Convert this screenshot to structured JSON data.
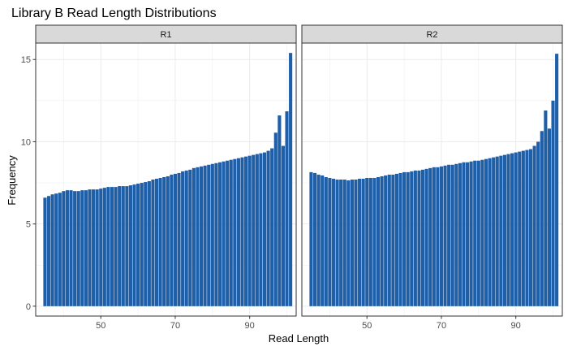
{
  "chart_data": {
    "type": "bar",
    "title": "Library B Read Length Distributions",
    "xlabel": "Read Length",
    "ylabel": "Frequency",
    "xticks": [
      50,
      70,
      90
    ],
    "yticks": [
      0,
      5,
      10,
      15
    ],
    "xlim": [
      32.5,
      102.5
    ],
    "ylim": [
      -0.6,
      16.0
    ],
    "bar_color": "#1F5FA8",
    "strip_fill": "#D9D9D9",
    "grid_color": "#EBEBEB",
    "panel_border": "#333333",
    "grid": true,
    "x": [
      35,
      36,
      37,
      38,
      39,
      40,
      41,
      42,
      43,
      44,
      45,
      46,
      47,
      48,
      49,
      50,
      51,
      52,
      53,
      54,
      55,
      56,
      57,
      58,
      59,
      60,
      61,
      62,
      63,
      64,
      65,
      66,
      67,
      68,
      69,
      70,
      71,
      72,
      73,
      74,
      75,
      76,
      77,
      78,
      79,
      80,
      81,
      82,
      83,
      84,
      85,
      86,
      87,
      88,
      89,
      90,
      91,
      92,
      93,
      94,
      95,
      96,
      97,
      98,
      99,
      100,
      101
    ],
    "panels": [
      {
        "label": "R1",
        "values": [
          6.6,
          6.7,
          6.8,
          6.85,
          6.9,
          7.0,
          7.05,
          7.05,
          7.0,
          7.0,
          7.05,
          7.05,
          7.1,
          7.1,
          7.1,
          7.15,
          7.2,
          7.25,
          7.25,
          7.25,
          7.3,
          7.3,
          7.3,
          7.35,
          7.4,
          7.45,
          7.5,
          7.55,
          7.6,
          7.7,
          7.75,
          7.8,
          7.85,
          7.9,
          8.0,
          8.05,
          8.1,
          8.2,
          8.25,
          8.3,
          8.4,
          8.45,
          8.5,
          8.55,
          8.6,
          8.65,
          8.7,
          8.75,
          8.8,
          8.85,
          8.9,
          8.95,
          9.0,
          9.05,
          9.1,
          9.15,
          9.2,
          9.25,
          9.3,
          9.35,
          9.45,
          9.6,
          10.55,
          11.6,
          9.75,
          11.85,
          15.4
        ]
      },
      {
        "label": "R2",
        "values": [
          8.15,
          8.1,
          8.0,
          7.95,
          7.85,
          7.8,
          7.75,
          7.7,
          7.7,
          7.7,
          7.65,
          7.7,
          7.7,
          7.75,
          7.75,
          7.8,
          7.8,
          7.8,
          7.85,
          7.9,
          7.95,
          8.0,
          8.0,
          8.05,
          8.1,
          8.15,
          8.15,
          8.2,
          8.25,
          8.25,
          8.3,
          8.35,
          8.4,
          8.45,
          8.45,
          8.5,
          8.55,
          8.6,
          8.6,
          8.65,
          8.7,
          8.75,
          8.75,
          8.8,
          8.85,
          8.85,
          8.9,
          8.95,
          9.0,
          9.05,
          9.1,
          9.15,
          9.2,
          9.25,
          9.3,
          9.35,
          9.4,
          9.45,
          9.5,
          9.55,
          9.75,
          10.0,
          10.65,
          11.9,
          10.8,
          12.5,
          15.35
        ]
      }
    ]
  }
}
